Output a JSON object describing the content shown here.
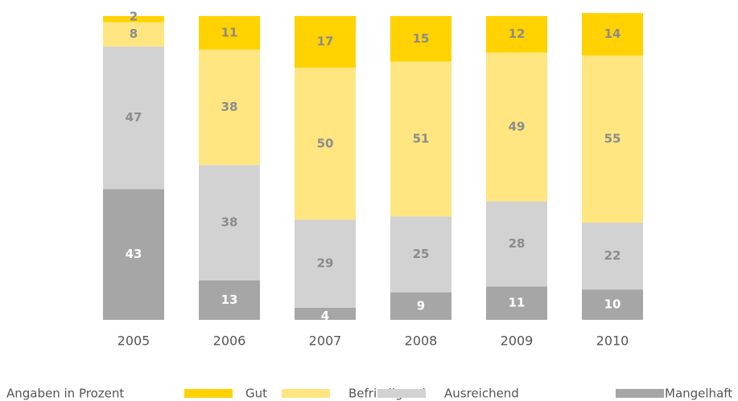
{
  "chart_data": {
    "type": "stacked_bar",
    "categories": [
      "2005",
      "2006",
      "2007",
      "2008",
      "2009",
      "2010"
    ],
    "series": [
      {
        "name": "Mangelhaft",
        "color": "#a6a6a6",
        "label_color": "#ffffff",
        "values": [
          43,
          13,
          4,
          9,
          11,
          10
        ]
      },
      {
        "name": "Ausreichend",
        "color": "#d2d2d2",
        "label_color": "#8c8c8c",
        "values": [
          47,
          38,
          29,
          25,
          28,
          22
        ]
      },
      {
        "name": "Befriedigend",
        "color": "#ffe680",
        "label_color": "#8c8c8c",
        "values": [
          8,
          38,
          50,
          51,
          49,
          55
        ]
      },
      {
        "name": "Gut",
        "color": "#ffd200",
        "label_color": "#8c8c8c",
        "values": [
          2,
          11,
          17,
          15,
          12,
          14
        ]
      }
    ],
    "ylim": [
      0,
      100
    ],
    "note": "Angaben in Prozent"
  }
}
